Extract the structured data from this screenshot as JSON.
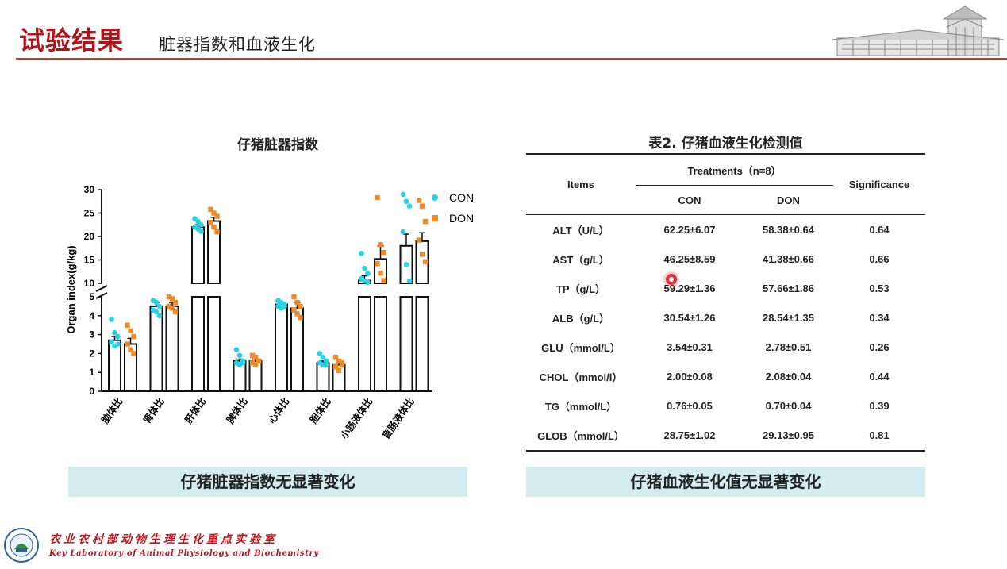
{
  "header": {
    "title": "试验结果",
    "subtitle": "脏器指数和血液生化"
  },
  "chart_title": "仔猪脏器指数",
  "chart_data": {
    "type": "bar",
    "title": "仔猪脏器指数",
    "ylabel": "Organ index(g/kg)",
    "y_axis_lower": {
      "range": [
        0,
        5
      ],
      "ticks": [
        "0",
        "1",
        "2",
        "3",
        "4",
        "5"
      ]
    },
    "y_axis_upper": {
      "range": [
        10,
        30
      ],
      "ticks": [
        "10",
        "15",
        "20",
        "25",
        "30"
      ]
    },
    "categories": [
      "脑体比",
      "肾体比",
      "肝体比",
      "脾体比",
      "心体比",
      "胆体比",
      "小肠液体比",
      "盲肠液体比"
    ],
    "series": [
      {
        "name": "CON",
        "color": "#27d3e6",
        "values": [
          2.7,
          4.5,
          22.0,
          1.6,
          4.6,
          1.5,
          10.6,
          18.0
        ],
        "errors": [
          0.2,
          0.2,
          0.5,
          0.1,
          0.1,
          0.1,
          1.0,
          2.5
        ],
        "points": [
          [
            3.8,
            3.1,
            2.9,
            2.6,
            2.4,
            2.5
          ],
          [
            4.8,
            4.7,
            4.5,
            4.3,
            4.2,
            4.0
          ],
          [
            23.8,
            23.2,
            22.5,
            22.0,
            21.6,
            21.1
          ],
          [
            2.2,
            1.9,
            1.6,
            1.5,
            1.4,
            1.5
          ],
          [
            4.8,
            4.7,
            4.6,
            4.5,
            4.4,
            4.5
          ],
          [
            2.0,
            1.8,
            1.6,
            1.5,
            1.4,
            1.4
          ],
          [
            16.4,
            13.2,
            12.1,
            11.0,
            10.5,
            10.2
          ],
          [
            29.0,
            27.5,
            26.5,
            21.0,
            14.0,
            10.5
          ]
        ]
      },
      {
        "name": "DON",
        "color": "#f08a28",
        "values": [
          2.5,
          4.5,
          23.3,
          1.6,
          4.4,
          1.4,
          15.2,
          19.0
        ],
        "errors": [
          0.3,
          0.2,
          0.8,
          0.1,
          0.3,
          0.2,
          2.8,
          1.8
        ],
        "points": [
          [
            3.5,
            3.2,
            2.9,
            2.5,
            2.2,
            2.0
          ],
          [
            5.0,
            4.9,
            4.7,
            4.5,
            4.4,
            4.2
          ],
          [
            25.8,
            25.0,
            24.3,
            23.0,
            22.0,
            21.0
          ],
          [
            1.9,
            1.8,
            1.6,
            1.5,
            1.4,
            1.6
          ],
          [
            5.0,
            4.7,
            4.5,
            4.3,
            4.1,
            3.9
          ],
          [
            1.8,
            1.6,
            1.4,
            1.3,
            1.1,
            1.5
          ],
          [
            28.3,
            18.3,
            16.6,
            14.2,
            12.2,
            10.6
          ],
          [
            27.7,
            26.5,
            23.2,
            19.2,
            16.2,
            14.6
          ]
        ]
      }
    ],
    "legend": [
      "CON",
      "DON"
    ]
  },
  "table": {
    "title": "表2. 仔猪血液生化检测值",
    "col_items": "Items",
    "col_treatments": "Treatments（n=8）",
    "col_con": "CON",
    "col_don": "DON",
    "col_significance": "Significance",
    "rows": [
      {
        "item": "ALT（U/L）",
        "con": "62.25±6.07",
        "don": "58.38±0.64",
        "sig": "0.64"
      },
      {
        "item": "AST（g/L）",
        "con": "46.25±8.59",
        "don": "41.38±0.66",
        "sig": "0.66"
      },
      {
        "item": "TP（g/L）",
        "con": "59.29±1.36",
        "don": "57.66±1.86",
        "sig": "0.53"
      },
      {
        "item": "ALB（g/L）",
        "con": "30.54±1.26",
        "don": "28.54±1.35",
        "sig": "0.34"
      },
      {
        "item": "GLU（mmol/L）",
        "con": "3.54±0.31",
        "don": "2.78±0.51",
        "sig": "0.26"
      },
      {
        "item": "CHOL（mmol/l）",
        "con": "2.00±0.08",
        "don": "2.08±0.04",
        "sig": "0.44"
      },
      {
        "item": "TG（mmol/L）",
        "con": "0.76±0.05",
        "don": "0.70±0.04",
        "sig": "0.39"
      },
      {
        "item": "GLOB（mmol/L）",
        "con": "28.75±1.02",
        "don": "29.13±0.95",
        "sig": "0.81"
      }
    ]
  },
  "banners": {
    "left": "仔猪脏器指数无显著变化",
    "right": "仔猪血液生化值无显著变化"
  },
  "footer": {
    "lab_cn": "农业农村部动物生理生化重点实验室",
    "lab_en": "Key Laboratory of Animal Physiology and Biochemistry"
  },
  "colors": {
    "accent": "#b2141b",
    "banner": "#d4ecee",
    "con": "#27d3e6",
    "don": "#f08a28"
  }
}
